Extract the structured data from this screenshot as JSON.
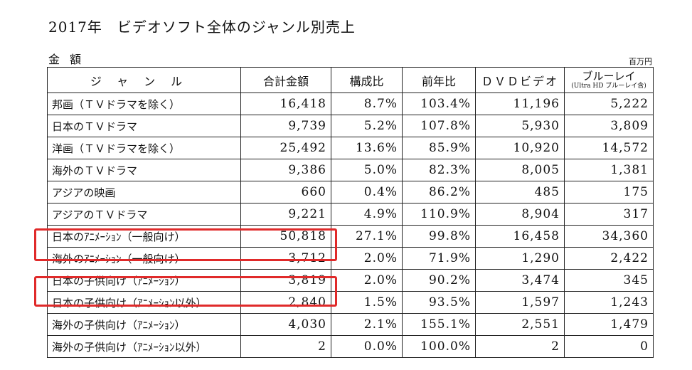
{
  "title": "2017年　ビデオソフト全体のジャンル別売上",
  "subtitle": "金額",
  "unit": "百万円",
  "table": {
    "headers": {
      "genre": "ジャンル",
      "total": "合計金額",
      "share": "構成比",
      "yoy": "前年比",
      "dvd": "ＤＶＤビデオ",
      "bluray": "ブルーレイ",
      "bluray_note": "(Ultra HD ブルーレイ含)"
    },
    "rows": [
      {
        "name": "邦画（ＴＶドラマを除く）",
        "total": "16,418",
        "share": "8.7%",
        "yoy": "103.4%",
        "dvd": "11,196",
        "bluray": "5,222"
      },
      {
        "name": "日本のＴＶドラマ",
        "total": "9,739",
        "share": "5.2%",
        "yoy": "107.8%",
        "dvd": "5,930",
        "bluray": "3,809"
      },
      {
        "name": "洋画（ＴＶドラマを除く）",
        "total": "25,492",
        "share": "13.6%",
        "yoy": "85.9%",
        "dvd": "10,920",
        "bluray": "14,572"
      },
      {
        "name": "海外のＴＶドラマ",
        "total": "9,386",
        "share": "5.0%",
        "yoy": "82.3%",
        "dvd": "8,005",
        "bluray": "1,381"
      },
      {
        "name": "アジアの映画",
        "total": "660",
        "share": "0.4%",
        "yoy": "86.2%",
        "dvd": "485",
        "bluray": "175"
      },
      {
        "name": "アジアのＴＶドラマ",
        "total": "9,221",
        "share": "4.9%",
        "yoy": "110.9%",
        "dvd": "8,904",
        "bluray": "317"
      },
      {
        "name": "日本のｱﾆﾒｰｼｮﾝ（一般向け）",
        "total": "50,818",
        "share": "27.1%",
        "yoy": "99.8%",
        "dvd": "16,458",
        "bluray": "34,360"
      },
      {
        "name": "海外のｱﾆﾒｰｼｮﾝ（一般向け）",
        "total": "3,712",
        "share": "2.0%",
        "yoy": "71.9%",
        "dvd": "1,290",
        "bluray": "2,422"
      },
      {
        "name": "日本の子供向け（ｱﾆﾒｰｼｮﾝ）",
        "total": "3,819",
        "share": "2.0%",
        "yoy": "90.2%",
        "dvd": "3,474",
        "bluray": "345"
      },
      {
        "name": "日本の子供向け（ｱﾆﾒｰｼｮﾝ以外）",
        "total": "2,840",
        "share": "1.5%",
        "yoy": "93.5%",
        "dvd": "1,597",
        "bluray": "1,243"
      },
      {
        "name": "海外の子供向け（ｱﾆﾒｰｼｮﾝ）",
        "total": "4,030",
        "share": "2.1%",
        "yoy": "155.1%",
        "dvd": "2,551",
        "bluray": "1,479"
      },
      {
        "name": "海外の子供向け（ｱﾆﾒｰｼｮﾝ以外）",
        "total": "2",
        "share": "0.0%",
        "yoy": "100.0%",
        "dvd": "2",
        "bluray": "0"
      }
    ]
  },
  "highlight_color": "#e02a2a"
}
